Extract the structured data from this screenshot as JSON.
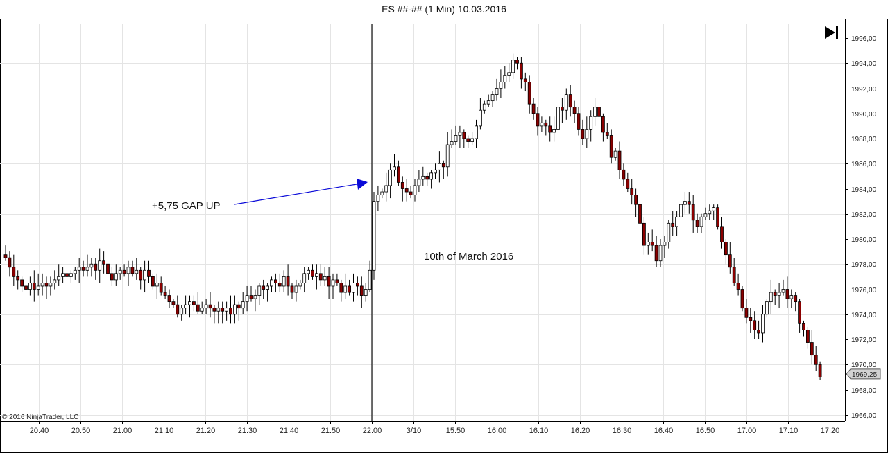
{
  "window": {
    "title": "ES ##-## (1 Min)  10.03.2016"
  },
  "copyright": "© 2016 NinjaTrader, LLC",
  "current_price_label": "1969,25",
  "icons": {
    "go_to_end": "skip-to-end-icon"
  },
  "annotations": {
    "gap_label": "+5,75 GAP UP",
    "date_label": "10th of March 2016"
  },
  "colors": {
    "up_candle": "#ffffff",
    "down_candle": "#8b0000",
    "wick": "#000000",
    "arrow": "#0a0ad8",
    "grid": "#e4e4e4"
  },
  "chart_data": {
    "type": "candlestick",
    "title": "ES ##-## (1 Min)  10.03.2016",
    "y_axis": {
      "side": "right",
      "range": [
        1965,
        1997
      ],
      "ticks": [
        "1966,00",
        "1968,00",
        "1970,00",
        "1972,00",
        "1974,00",
        "1976,00",
        "1978,00",
        "1980,00",
        "1982,00",
        "1984,00",
        "1986,00",
        "1988,00",
        "1990,00",
        "1992,00",
        "1994,00",
        "1996,00"
      ]
    },
    "x_axis": {
      "ticks": [
        "20.40",
        "20.50",
        "21.00",
        "21.10",
        "21.20",
        "21.30",
        "21.40",
        "21.50",
        "22.00",
        "3/10",
        "15.50",
        "16.00",
        "16.10",
        "16.20",
        "16.30",
        "16.40",
        "16.50",
        "17.00",
        "17.10",
        "17.20"
      ]
    },
    "session_break_tick": "22.00",
    "grid": true,
    "last_price": 1969.25,
    "gap_up": 5.75,
    "price_path": [
      {
        "i": 0,
        "p": 1978.5
      },
      {
        "i": 4,
        "p": 1976.2
      },
      {
        "i": 9,
        "p": 1976.5
      },
      {
        "i": 15,
        "p": 1977.0
      },
      {
        "i": 22,
        "p": 1978.0
      },
      {
        "i": 26,
        "p": 1977.0
      },
      {
        "i": 35,
        "p": 1977.2
      },
      {
        "i": 38,
        "p": 1976.2
      },
      {
        "i": 41,
        "p": 1974.5
      },
      {
        "i": 48,
        "p": 1974.8
      },
      {
        "i": 55,
        "p": 1973.8
      },
      {
        "i": 60,
        "p": 1975.5
      },
      {
        "i": 66,
        "p": 1977.0
      },
      {
        "i": 70,
        "p": 1976.2
      },
      {
        "i": 76,
        "p": 1977.6
      },
      {
        "i": 80,
        "p": 1976.2
      },
      {
        "i": 88,
        "p": 1975.8
      },
      {
        "i": 89,
        "p": 1977.5
      },
      {
        "i": 90,
        "p": 1983.0
      },
      {
        "i": 95,
        "p": 1985.5
      },
      {
        "i": 98,
        "p": 1983.5
      },
      {
        "i": 102,
        "p": 1985.0
      },
      {
        "i": 107,
        "p": 1986.0
      },
      {
        "i": 110,
        "p": 1988.5
      },
      {
        "i": 113,
        "p": 1987.5
      },
      {
        "i": 117,
        "p": 1991.0
      },
      {
        "i": 121,
        "p": 1992.5
      },
      {
        "i": 124,
        "p": 1994.2
      },
      {
        "i": 127,
        "p": 1992.2
      },
      {
        "i": 130,
        "p": 1989.5
      },
      {
        "i": 133,
        "p": 1988.5
      },
      {
        "i": 137,
        "p": 1991.5
      },
      {
        "i": 141,
        "p": 1988.5
      },
      {
        "i": 144,
        "p": 1990.8
      },
      {
        "i": 148,
        "p": 1987.0
      },
      {
        "i": 152,
        "p": 1984.5
      },
      {
        "i": 156,
        "p": 1980.0
      },
      {
        "i": 159,
        "p": 1978.5
      },
      {
        "i": 163,
        "p": 1981.5
      },
      {
        "i": 166,
        "p": 1983.2
      },
      {
        "i": 169,
        "p": 1981.5
      },
      {
        "i": 173,
        "p": 1982.8
      },
      {
        "i": 177,
        "p": 1977.5
      },
      {
        "i": 181,
        "p": 1973.5
      },
      {
        "i": 184,
        "p": 1972.5
      },
      {
        "i": 187,
        "p": 1975.5
      },
      {
        "i": 190,
        "p": 1976.2
      },
      {
        "i": 193,
        "p": 1974.8
      },
      {
        "i": 196,
        "p": 1971.5
      },
      {
        "i": 199,
        "p": 1969.25
      }
    ]
  }
}
